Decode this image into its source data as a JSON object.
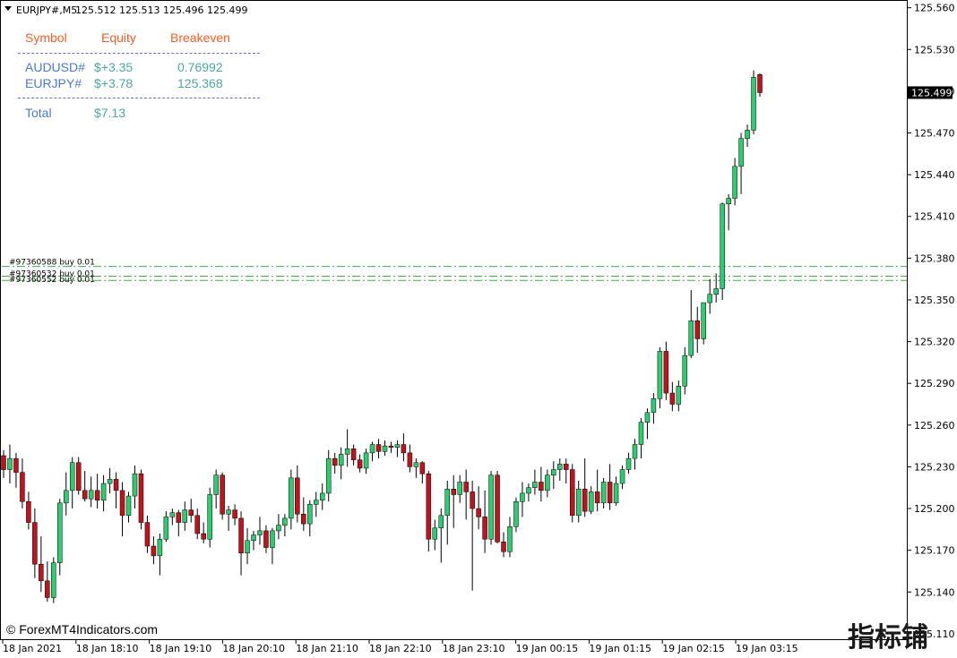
{
  "header": {
    "symbol_timeframe": "EURJPY#,M5",
    "ohlc": "125.512 125.513 125.496 125.499"
  },
  "panel": {
    "col_symbol": "Symbol",
    "col_equity": "Equity",
    "col_breakeven": "Breakeven",
    "rows": [
      {
        "symbol": "AUDUSD#",
        "equity": "$+3.35",
        "breakeven": "0.76992"
      },
      {
        "symbol": "EURJPY#",
        "equity": "$+3.78",
        "breakeven": "125.368"
      }
    ],
    "total_label": "Total",
    "total_value": "$7.13",
    "header_color": "#ff5a1f",
    "symbol_color": "#4a78d8",
    "value_color": "#4aa8a0"
  },
  "orders": [
    {
      "label": "#97360588 buy 0.01",
      "price": 125.374
    },
    {
      "label": "#97360532 buy 0.01",
      "price": 125.367
    },
    {
      "label": "#97360552 buy 0.01",
      "price": 125.364
    }
  ],
  "current_price": "125.499",
  "watermark": "© ForexMT4Indicators.com",
  "corner_logo": "指标铺",
  "colors": {
    "bull": "#2ecc71",
    "bear": "#c0141c",
    "wick": "#000000",
    "order_line": "#3cb043"
  },
  "chart_data": {
    "type": "candlestick",
    "title": "",
    "xlabel": "",
    "ylabel": "",
    "ylim": [
      125.117,
      125.563
    ],
    "y_ticks": [
      "125.560",
      "125.530",
      "125.500",
      "125.470",
      "125.440",
      "125.410",
      "125.380",
      "125.350",
      "125.320",
      "125.290",
      "125.260",
      "125.230",
      "125.200",
      "125.170",
      "125.140",
      "125.110"
    ],
    "x_ticks": [
      "18 Jan 2021",
      "18 Jan 18:10",
      "18 Jan 19:10",
      "18 Jan 20:10",
      "18 Jan 21:10",
      "18 Jan 22:10",
      "18 Jan 23:10",
      "19 Jan 00:15",
      "19 Jan 01:15",
      "19 Jan 02:15",
      "19 Jan 03:15"
    ],
    "grid": false,
    "candles": [
      [
        125.238,
        125.242,
        125.222,
        125.228
      ],
      [
        125.228,
        125.246,
        125.218,
        125.236
      ],
      [
        125.236,
        125.24,
        125.215,
        125.226
      ],
      [
        125.226,
        125.236,
        125.2,
        125.205
      ],
      [
        125.205,
        125.212,
        125.185,
        125.19
      ],
      [
        125.19,
        125.2,
        125.15,
        125.16
      ],
      [
        125.16,
        125.18,
        125.14,
        125.148
      ],
      [
        125.148,
        125.162,
        125.133,
        125.136
      ],
      [
        125.136,
        125.165,
        125.132,
        125.161
      ],
      [
        125.161,
        125.207,
        125.152,
        125.204
      ],
      [
        125.204,
        125.226,
        125.195,
        125.213
      ],
      [
        125.213,
        125.237,
        125.2,
        125.233
      ],
      [
        125.233,
        125.237,
        125.21,
        125.213
      ],
      [
        125.213,
        125.227,
        125.205,
        125.207
      ],
      [
        125.207,
        125.223,
        125.201,
        125.213
      ],
      [
        125.213,
        125.225,
        125.2,
        125.206
      ],
      [
        125.206,
        125.224,
        125.198,
        125.218
      ],
      [
        125.218,
        125.229,
        125.211,
        125.221
      ],
      [
        125.221,
        125.226,
        125.2,
        125.213
      ],
      [
        125.213,
        125.219,
        125.18,
        125.195
      ],
      [
        125.195,
        125.212,
        125.19,
        125.209
      ],
      [
        125.209,
        125.231,
        125.2,
        125.225
      ],
      [
        125.225,
        125.228,
        125.185,
        125.19
      ],
      [
        125.19,
        125.195,
        125.168,
        125.173
      ],
      [
        125.173,
        125.18,
        125.16,
        125.166
      ],
      [
        125.166,
        125.182,
        125.152,
        125.178
      ],
      [
        125.178,
        125.198,
        125.176,
        125.194
      ],
      [
        125.194,
        125.2,
        125.188,
        125.197
      ],
      [
        125.197,
        125.199,
        125.18,
        125.19
      ],
      [
        125.19,
        125.205,
        125.184,
        125.199
      ],
      [
        125.199,
        125.207,
        125.19,
        125.195
      ],
      [
        125.195,
        125.2,
        125.178,
        125.182
      ],
      [
        125.182,
        125.19,
        125.175,
        125.178
      ],
      [
        125.178,
        125.215,
        125.172,
        125.21
      ],
      [
        125.21,
        125.228,
        125.2,
        125.224
      ],
      [
        125.224,
        125.226,
        125.192,
        125.196
      ],
      [
        125.196,
        125.202,
        125.184,
        125.199
      ],
      [
        125.199,
        125.203,
        125.188,
        125.193
      ],
      [
        125.193,
        125.198,
        125.152,
        125.168
      ],
      [
        125.168,
        125.186,
        125.16,
        125.177
      ],
      [
        125.177,
        125.184,
        125.17,
        125.181
      ],
      [
        125.181,
        125.194,
        125.174,
        125.184
      ],
      [
        125.184,
        125.188,
        125.168,
        125.172
      ],
      [
        125.172,
        125.186,
        125.16,
        125.184
      ],
      [
        125.184,
        125.196,
        125.178,
        125.188
      ],
      [
        125.188,
        125.196,
        125.18,
        125.193
      ],
      [
        125.193,
        125.228,
        125.185,
        125.222
      ],
      [
        125.222,
        125.231,
        125.19,
        125.196
      ],
      [
        125.196,
        125.208,
        125.184,
        125.189
      ],
      [
        125.189,
        125.206,
        125.18,
        125.203
      ],
      [
        125.203,
        125.212,
        125.194,
        125.206
      ],
      [
        125.206,
        125.218,
        125.199,
        125.211
      ],
      [
        125.211,
        125.242,
        125.205,
        125.236
      ],
      [
        125.236,
        125.24,
        125.225,
        125.231
      ],
      [
        125.231,
        125.244,
        125.221,
        125.239
      ],
      [
        125.239,
        125.257,
        125.23,
        125.243
      ],
      [
        125.243,
        125.246,
        125.231,
        125.235
      ],
      [
        125.235,
        125.239,
        125.226,
        125.229
      ],
      [
        125.229,
        125.243,
        125.225,
        125.24
      ],
      [
        125.24,
        125.248,
        125.234,
        125.246
      ],
      [
        125.246,
        125.25,
        125.236,
        125.241
      ],
      [
        125.241,
        125.249,
        125.238,
        125.245
      ],
      [
        125.245,
        125.248,
        125.24,
        125.244
      ],
      [
        125.244,
        125.249,
        125.237,
        125.246
      ],
      [
        125.246,
        125.254,
        125.234,
        125.24
      ],
      [
        125.24,
        125.246,
        125.226,
        125.23
      ],
      [
        125.23,
        125.236,
        125.222,
        125.233
      ],
      [
        125.233,
        125.234,
        125.218,
        125.225
      ],
      [
        125.225,
        125.227,
        125.169,
        125.178
      ],
      [
        125.178,
        125.192,
        125.17,
        125.186
      ],
      [
        125.186,
        125.2,
        125.161,
        125.195
      ],
      [
        125.195,
        125.22,
        125.174,
        125.214
      ],
      [
        125.214,
        125.224,
        125.186,
        125.21
      ],
      [
        125.21,
        125.224,
        125.204,
        125.219
      ],
      [
        125.219,
        125.228,
        125.192,
        125.212
      ],
      [
        125.212,
        125.22,
        125.141,
        125.2
      ],
      [
        125.2,
        125.216,
        125.185,
        125.194
      ],
      [
        125.194,
        125.213,
        125.168,
        125.178
      ],
      [
        125.178,
        125.227,
        125.174,
        125.224
      ],
      [
        125.224,
        125.227,
        125.175,
        125.176
      ],
      [
        125.176,
        125.183,
        125.165,
        125.169
      ],
      [
        125.169,
        125.194,
        125.165,
        125.187
      ],
      [
        125.187,
        125.208,
        125.183,
        125.205
      ],
      [
        125.205,
        125.219,
        125.194,
        125.211
      ],
      [
        125.211,
        125.218,
        125.205,
        125.215
      ],
      [
        125.215,
        125.228,
        125.21,
        125.219
      ],
      [
        125.219,
        125.23,
        125.205,
        125.213
      ],
      [
        125.213,
        125.228,
        125.208,
        125.224
      ],
      [
        125.224,
        125.234,
        125.214,
        125.228
      ],
      [
        125.228,
        125.236,
        125.22,
        125.232
      ],
      [
        125.232,
        125.236,
        125.218,
        125.228
      ],
      [
        125.228,
        125.232,
        125.19,
        125.195
      ],
      [
        125.195,
        125.22,
        125.19,
        125.214
      ],
      [
        125.214,
        125.236,
        125.194,
        125.198
      ],
      [
        125.198,
        125.216,
        125.196,
        125.212
      ],
      [
        125.212,
        125.228,
        125.198,
        125.204
      ],
      [
        125.204,
        125.222,
        125.2,
        125.219
      ],
      [
        125.219,
        125.232,
        125.199,
        125.204
      ],
      [
        125.204,
        125.223,
        125.202,
        125.218
      ],
      [
        125.218,
        125.231,
        125.214,
        125.228
      ],
      [
        125.228,
        125.24,
        125.225,
        125.236
      ],
      [
        125.236,
        125.25,
        125.228,
        125.246
      ],
      [
        125.246,
        125.265,
        125.236,
        125.262
      ],
      [
        125.262,
        125.272,
        125.25,
        125.269
      ],
      [
        125.269,
        125.283,
        125.261,
        125.279
      ],
      [
        125.279,
        125.316,
        125.272,
        125.313
      ],
      [
        125.313,
        125.32,
        125.278,
        125.283
      ],
      [
        125.283,
        125.291,
        125.27,
        125.275
      ],
      [
        125.275,
        125.292,
        125.27,
        125.288
      ],
      [
        125.288,
        125.316,
        125.282,
        125.31
      ],
      [
        125.31,
        125.357,
        125.308,
        125.335
      ],
      [
        125.335,
        125.345,
        125.312,
        125.322
      ],
      [
        125.322,
        125.344,
        125.318,
        125.348
      ],
      [
        125.348,
        125.365,
        125.34,
        125.354
      ],
      [
        125.354,
        125.369,
        125.348,
        125.358
      ],
      [
        125.358,
        125.42,
        125.35,
        125.419
      ],
      [
        125.419,
        125.426,
        125.4,
        125.423
      ],
      [
        125.423,
        125.452,
        125.418,
        125.446
      ],
      [
        125.446,
        125.47,
        125.426,
        125.466
      ],
      [
        125.466,
        125.476,
        125.46,
        125.472
      ],
      [
        125.472,
        125.515,
        125.469,
        125.51
      ],
      [
        125.512,
        125.513,
        125.496,
        125.499
      ]
    ]
  }
}
